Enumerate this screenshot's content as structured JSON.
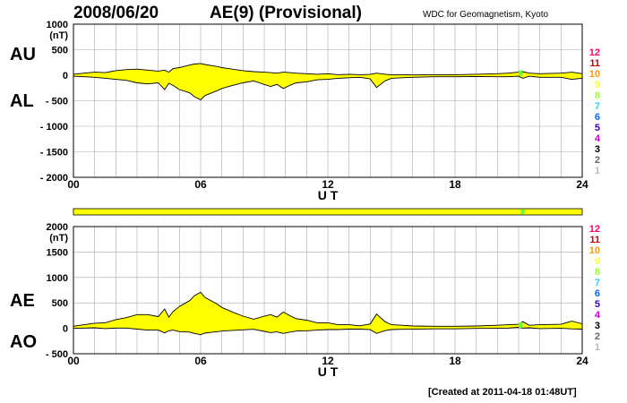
{
  "header": {
    "date": "2008/06/20",
    "title": "AE(9)  (Provisional)",
    "org": "WDC for Geomagnetism, Kyoto"
  },
  "footer": {
    "created": "[Created at 2011-04-18 01:48UT]"
  },
  "colors": {
    "fill": "#ffff00",
    "accent": "#66ff33",
    "grid": "#aaaaaa"
  },
  "chart_data": [
    {
      "type": "area",
      "series_labels": {
        "upper": "AU",
        "lower": "AL"
      },
      "ylabel": "(nT)",
      "xlabel": "U T",
      "xlim": [
        0,
        24
      ],
      "ylim": [
        -2000,
        1000
      ],
      "x_ticks": [
        "00",
        "06",
        "12",
        "18",
        "24"
      ],
      "y_ticks": [
        "1000",
        "500",
        "0",
        "- 500",
        "- 1000",
        "- 1500",
        "- 2000"
      ],
      "grid": true,
      "x": [
        0,
        0.5,
        1,
        1.5,
        2,
        2.5,
        3,
        3.5,
        4,
        4.3,
        4.5,
        4.7,
        5,
        5.3,
        5.5,
        5.7,
        6,
        6.2,
        6.5,
        6.8,
        7,
        7.5,
        8,
        8.5,
        9,
        9.3,
        9.6,
        9.9,
        10.2,
        10.5,
        11,
        11.5,
        12,
        12.5,
        13,
        13.5,
        14,
        14.3,
        14.7,
        15,
        15.5,
        16,
        17,
        18,
        19,
        20,
        20.5,
        21,
        21.2,
        21.5,
        22,
        23,
        23.5,
        24
      ],
      "upper": [
        20,
        40,
        60,
        50,
        90,
        110,
        120,
        100,
        80,
        100,
        60,
        130,
        150,
        180,
        200,
        220,
        230,
        210,
        190,
        170,
        150,
        120,
        90,
        70,
        60,
        50,
        40,
        60,
        50,
        40,
        30,
        20,
        30,
        10,
        20,
        10,
        15,
        40,
        20,
        10,
        10,
        5,
        10,
        10,
        20,
        30,
        40,
        60,
        70,
        40,
        30,
        40,
        60,
        30
      ],
      "lower": [
        -20,
        -30,
        -40,
        -60,
        -80,
        -100,
        -150,
        -170,
        -150,
        -280,
        -160,
        -200,
        -280,
        -320,
        -350,
        -420,
        -480,
        -400,
        -350,
        -300,
        -260,
        -200,
        -150,
        -110,
        -180,
        -220,
        -180,
        -260,
        -200,
        -150,
        -130,
        -90,
        -80,
        -60,
        -50,
        -40,
        -70,
        -240,
        -110,
        -60,
        -50,
        -40,
        -30,
        -30,
        -25,
        -30,
        -30,
        -20,
        -60,
        -20,
        -40,
        -40,
        -80,
        -60
      ]
    },
    {
      "type": "area",
      "series_labels": {
        "upper": "AE",
        "lower": "AO"
      },
      "ylabel": "(nT)",
      "xlabel": "U T",
      "xlim": [
        0,
        24
      ],
      "ylim": [
        -500,
        2000
      ],
      "x_ticks": [
        "00",
        "06",
        "12",
        "18",
        "24"
      ],
      "y_ticks": [
        "2000",
        "1500",
        "1000",
        "500",
        "0",
        "- 500"
      ],
      "grid": true,
      "x": [
        0,
        0.5,
        1,
        1.5,
        2,
        2.5,
        3,
        3.5,
        4,
        4.3,
        4.5,
        4.7,
        5,
        5.3,
        5.5,
        5.7,
        6,
        6.2,
        6.5,
        6.8,
        7,
        7.5,
        8,
        8.5,
        9,
        9.3,
        9.6,
        9.9,
        10.2,
        10.5,
        11,
        11.5,
        12,
        12.5,
        13,
        13.5,
        14,
        14.3,
        14.7,
        15,
        15.5,
        16,
        17,
        18,
        19,
        20,
        20.5,
        21,
        21.2,
        21.5,
        22,
        23,
        23.5,
        24
      ],
      "ae": [
        40,
        70,
        100,
        110,
        170,
        210,
        270,
        270,
        230,
        380,
        220,
        330,
        430,
        500,
        550,
        640,
        710,
        610,
        540,
        470,
        410,
        320,
        240,
        180,
        240,
        270,
        220,
        320,
        250,
        190,
        160,
        110,
        110,
        70,
        70,
        50,
        85,
        280,
        130,
        70,
        60,
        45,
        40,
        40,
        45,
        60,
        70,
        80,
        130,
        60,
        70,
        80,
        140,
        90
      ],
      "ao": [
        0,
        5,
        10,
        -5,
        5,
        5,
        -15,
        -35,
        -35,
        -90,
        -50,
        -35,
        -65,
        -70,
        -75,
        -100,
        -125,
        -95,
        -80,
        -65,
        -55,
        -40,
        -30,
        -20,
        -60,
        -85,
        -70,
        -100,
        -75,
        -55,
        -50,
        -35,
        -25,
        -25,
        -15,
        -15,
        -27,
        -100,
        -45,
        -25,
        -20,
        -17,
        -10,
        -10,
        -2,
        0,
        5,
        20,
        5,
        10,
        -5,
        0,
        -10,
        -15
      ]
    }
  ],
  "legend_numbers": [
    "12",
    "11",
    "10",
    "9",
    "8",
    "7",
    "6",
    "5",
    "4",
    "3",
    "2",
    "1"
  ],
  "legend_colors": [
    "#ff0066",
    "#cc0000",
    "#ff9900",
    "#ffff33",
    "#99ff33",
    "#33ccff",
    "#0066ff",
    "#3300cc",
    "#cc00cc",
    "#000000",
    "#666666",
    "#bbbbbb"
  ],
  "station_bar": {
    "fill": "#ffff00",
    "marks_x": [
      21.1
    ]
  }
}
